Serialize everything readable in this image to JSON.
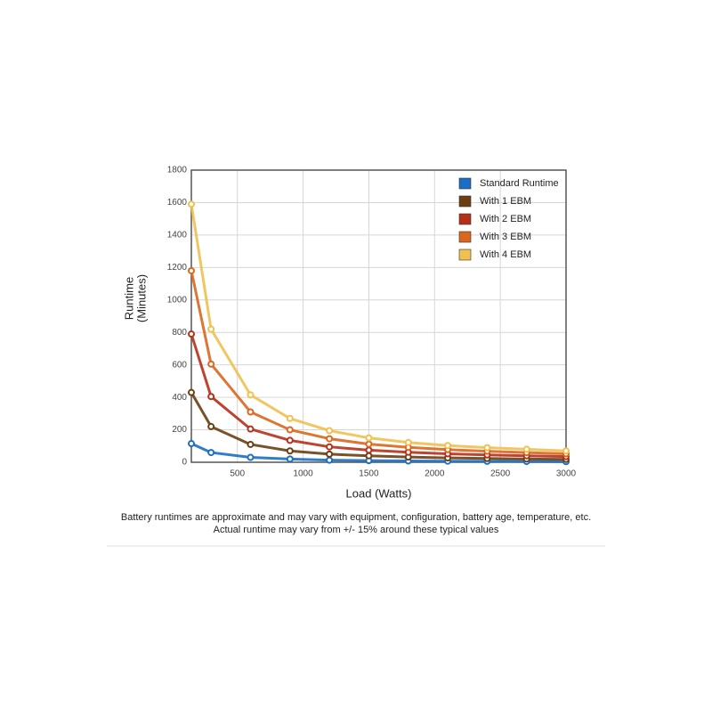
{
  "chart_data": {
    "type": "line",
    "xlabel": "Load (Watts)",
    "ylabel": [
      "Runtime",
      "(Minutes)"
    ],
    "notes": [
      "Battery runtimes are approximate and may vary with equipment, configuration, battery age, temperature, etc.",
      "Actual runtime may vary from +/- 15% around these typical values"
    ],
    "x": [
      150,
      300,
      600,
      900,
      1200,
      1500,
      1800,
      2100,
      2400,
      2700,
      3000
    ],
    "series": [
      {
        "name": "Standard Runtime",
        "color": "#1a6fc4",
        "values": [
          115,
          60,
          30,
          20,
          13,
          10,
          8,
          7,
          6,
          5,
          4
        ]
      },
      {
        "name": "With 1 EBM",
        "color": "#6b3f12",
        "values": [
          430,
          220,
          110,
          70,
          50,
          40,
          32,
          27,
          23,
          20,
          18
        ]
      },
      {
        "name": "With 2 EBM",
        "color": "#b5301a",
        "values": [
          790,
          405,
          205,
          135,
          95,
          75,
          62,
          52,
          45,
          40,
          35
        ]
      },
      {
        "name": "With 3 EBM",
        "color": "#d9671f",
        "values": [
          1180,
          605,
          310,
          200,
          145,
          112,
          92,
          78,
          68,
          60,
          52
        ]
      },
      {
        "name": "With 4 EBM",
        "color": "#f0c050",
        "values": [
          1590,
          820,
          415,
          270,
          195,
          150,
          122,
          103,
          90,
          80,
          70
        ]
      }
    ],
    "xlim": [
      150,
      3000
    ],
    "xticks": [
      500,
      1000,
      1500,
      2000,
      2500,
      3000
    ],
    "ylim": [
      0,
      1800
    ],
    "yticks": [
      0,
      200,
      400,
      600,
      800,
      1000,
      1200,
      1400,
      1600,
      1800
    ],
    "grid": true,
    "legend": "top-right"
  }
}
